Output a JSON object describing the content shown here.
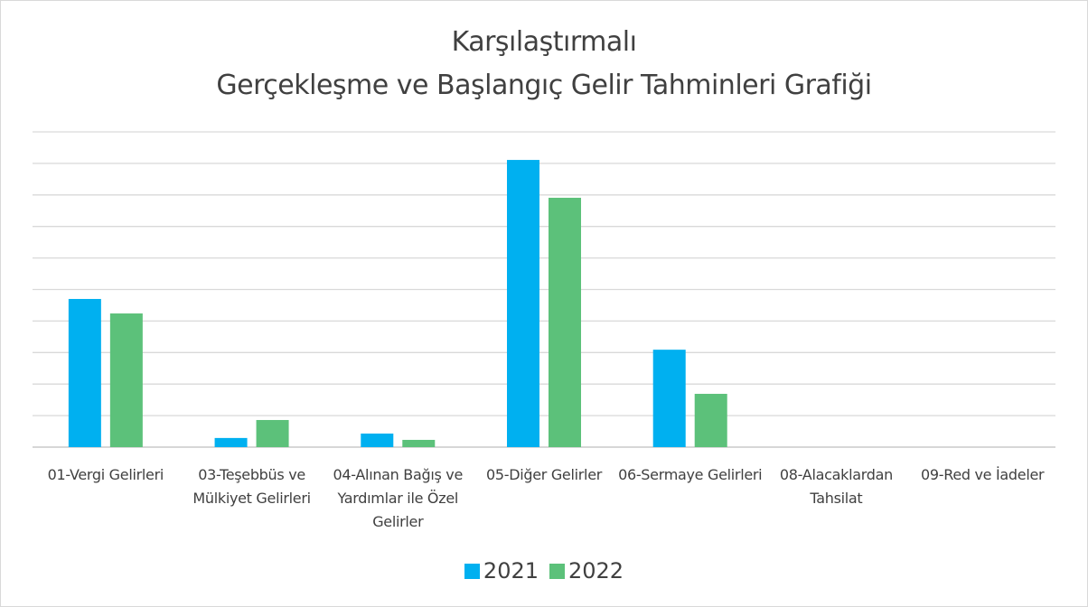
{
  "chart_data": {
    "type": "bar",
    "title": [
      "Karşılaştırmalı",
      "Gerçekleşme ve Başlangıç Gelir Tahminleri Grafiği"
    ],
    "categories": [
      "01-Vergi Gelirleri",
      "03-Teşebbüs ve Mülkiyet Gelirleri",
      "04-Alınan Bağış ve Yardımlar ile Özel Gelirler",
      "05-Diğer Gelirler",
      "06-Sermaye Gelirleri",
      "08-Alacaklardan Tahsilat",
      "09-Red ve İadeler"
    ],
    "series": [
      {
        "name": "2021",
        "color": "#00b0f0",
        "values": [
          4.7,
          0.29,
          0.43,
          9.11,
          3.09,
          0,
          0
        ]
      },
      {
        "name": "2022",
        "color": "#5cc17a",
        "values": [
          4.24,
          0.86,
          0.23,
          7.91,
          1.69,
          0,
          0
        ]
      }
    ],
    "ylim": [
      0,
      10
    ],
    "yticks": [
      0,
      1,
      2,
      3,
      4,
      5,
      6,
      7,
      8,
      9,
      10
    ],
    "grid": true,
    "legend": "bottom"
  }
}
